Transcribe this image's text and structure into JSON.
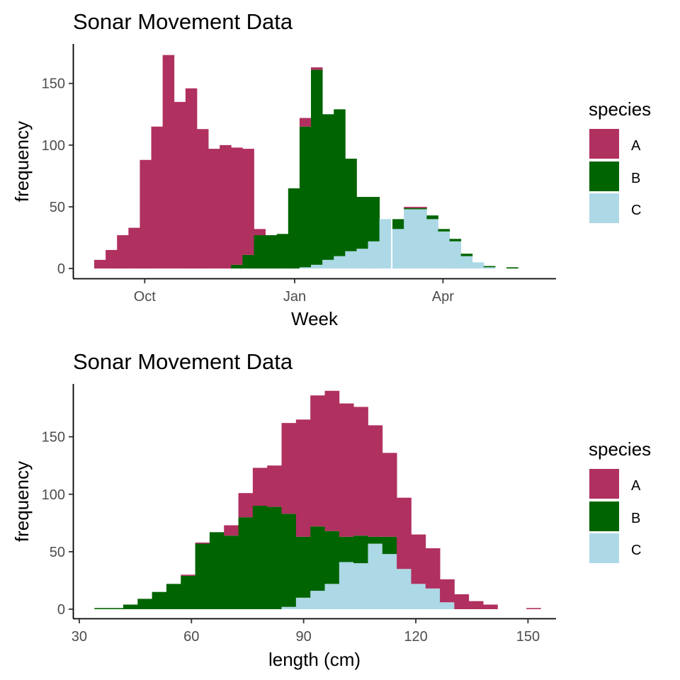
{
  "chart_data": [
    {
      "type": "histogram-stacked",
      "title": "Sonar Movement Data",
      "xlabel": "Week",
      "ylabel": "frequency",
      "x_ticks": [
        "Oct",
        "Jan",
        "Apr"
      ],
      "y_ticks": [
        "0",
        "50",
        "100",
        "150"
      ],
      "ylim": [
        -8,
        182
      ],
      "legend": {
        "title": "species",
        "position": "right",
        "entries": [
          "A",
          "B",
          "C"
        ]
      },
      "colors": {
        "A": "#B03060",
        "B": "#006400",
        "C": "#ADD8E6"
      },
      "bins": [
        "2023-08-31",
        "2023-09-07",
        "2023-09-14",
        "2023-09-21",
        "2023-09-28",
        "2023-10-05",
        "2023-10-12",
        "2023-10-19",
        "2023-10-26",
        "2023-11-02",
        "2023-11-09",
        "2023-11-16",
        "2023-11-23",
        "2023-11-30",
        "2023-12-07",
        "2023-12-14",
        "2023-12-21",
        "2023-12-28",
        "2024-01-04",
        "2024-01-11",
        "2024-01-18",
        "2024-01-25",
        "2024-02-01",
        "2024-02-08",
        "2024-02-15",
        "2024-02-22",
        "2024-03-01",
        "2024-03-08",
        "2024-03-15",
        "2024-03-22",
        "2024-03-29",
        "2024-04-05",
        "2024-04-12",
        "2024-04-19",
        "2024-04-26",
        "2024-05-03",
        "2024-05-10",
        "2024-05-17"
      ],
      "series": [
        {
          "name": "C",
          "values": [
            0,
            0,
            0,
            0,
            0,
            0,
            0,
            0,
            0,
            0,
            0,
            0,
            0,
            0,
            0,
            0,
            0,
            0,
            1,
            3,
            7,
            10,
            14,
            16,
            22,
            40,
            32,
            48,
            48,
            40,
            30,
            22,
            10,
            5,
            1,
            0,
            0,
            0
          ]
        },
        {
          "name": "B",
          "values": [
            0,
            0,
            0,
            0,
            0,
            0,
            0,
            0,
            0,
            0,
            0,
            0,
            3,
            11,
            27,
            27,
            28,
            65,
            114,
            158,
            118,
            119,
            75,
            42,
            36,
            0,
            8,
            1,
            1,
            3,
            2,
            2,
            2,
            0,
            1,
            0,
            1,
            0
          ]
        },
        {
          "name": "A",
          "values": [
            7,
            15,
            27,
            33,
            88,
            115,
            173,
            135,
            146,
            113,
            97,
            100,
            95,
            86,
            5,
            0,
            0,
            0,
            7,
            2,
            0,
            0,
            0,
            0,
            0,
            0,
            0,
            1,
            1,
            0,
            0,
            0,
            0,
            0,
            0,
            0,
            0,
            0
          ]
        }
      ]
    },
    {
      "type": "histogram-stacked",
      "title": "Sonar Movement Data",
      "xlabel": "length (cm)",
      "ylabel": "frequency",
      "x_ticks": [
        "30",
        "60",
        "90",
        "120",
        "150"
      ],
      "y_ticks": [
        "0",
        "50",
        "100",
        "150"
      ],
      "xlim": [
        28.5,
        157.5
      ],
      "ylim": [
        -8,
        196
      ],
      "legend": {
        "title": "species",
        "position": "right",
        "entries": [
          "A",
          "B",
          "C"
        ]
      },
      "colors": {
        "A": "#B03060",
        "B": "#006400",
        "C": "#ADD8E6"
      },
      "bin_edges": [
        34.05,
        37.9,
        41.75,
        45.6,
        49.45,
        53.3,
        57.15,
        61.0,
        64.85,
        68.7,
        72.55,
        76.4,
        80.25,
        84.1,
        87.95,
        91.8,
        95.65,
        99.5,
        103.35,
        107.2,
        111.05,
        114.9,
        118.75,
        122.6,
        126.45,
        130.3,
        134.15,
        138.0,
        141.85,
        145.7,
        149.55,
        153.4
      ],
      "series": [
        {
          "name": "C",
          "values": [
            0,
            0,
            0,
            0,
            0,
            0,
            0,
            0,
            0,
            0,
            0,
            0,
            0,
            2,
            10,
            16,
            22,
            41,
            40,
            57,
            48,
            35,
            22,
            18,
            6,
            0,
            0,
            0,
            0,
            0,
            0
          ]
        },
        {
          "name": "B",
          "values": [
            1,
            1,
            4,
            9,
            15,
            22,
            29,
            57,
            67,
            64,
            80,
            90,
            89,
            81,
            53,
            56,
            46,
            22,
            24,
            6,
            15,
            0,
            0,
            0,
            0,
            0,
            0,
            0,
            0,
            0,
            0
          ]
        },
        {
          "name": "A",
          "values": [
            0,
            0,
            0,
            0,
            0,
            0,
            1,
            1,
            0,
            9,
            21,
            33,
            36,
            79,
            102,
            114,
            122,
            116,
            112,
            97,
            73,
            62,
            43,
            35,
            20,
            13,
            7,
            4,
            0,
            0,
            1
          ]
        }
      ]
    }
  ]
}
